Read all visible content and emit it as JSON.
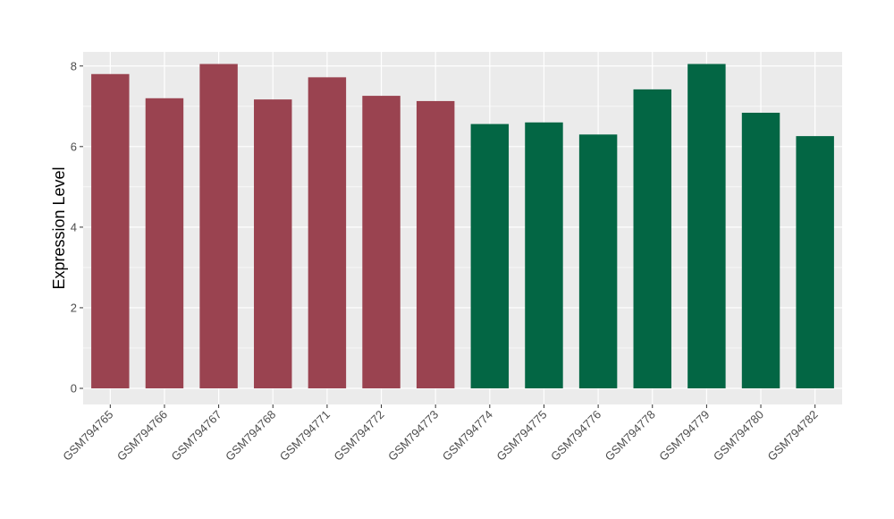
{
  "chart_data": {
    "type": "bar",
    "title": "",
    "xlabel": "",
    "ylabel": "Expression Level",
    "ylim": [
      -0.4,
      8.35
    ],
    "yticks": [
      0,
      2,
      4,
      6,
      8
    ],
    "grid": true,
    "legend": "none",
    "categories": [
      "GSM794765",
      "GSM794766",
      "GSM794767",
      "GSM794768",
      "GSM794771",
      "GSM794772",
      "GSM794773",
      "GSM794774",
      "GSM794775",
      "GSM794776",
      "GSM794778",
      "GSM794779",
      "GSM794780",
      "GSM794782"
    ],
    "values": [
      7.8,
      7.2,
      8.05,
      7.17,
      7.72,
      7.26,
      7.13,
      6.56,
      6.6,
      6.3,
      7.42,
      8.05,
      6.84,
      6.26
    ],
    "groups": [
      "a",
      "a",
      "a",
      "a",
      "a",
      "a",
      "a",
      "b",
      "b",
      "b",
      "b",
      "b",
      "b",
      "b"
    ],
    "colors": {
      "a": "#9a4350",
      "b": "#036644"
    },
    "panel_background": "#ebebeb",
    "gridline_color": "#ffffff"
  }
}
